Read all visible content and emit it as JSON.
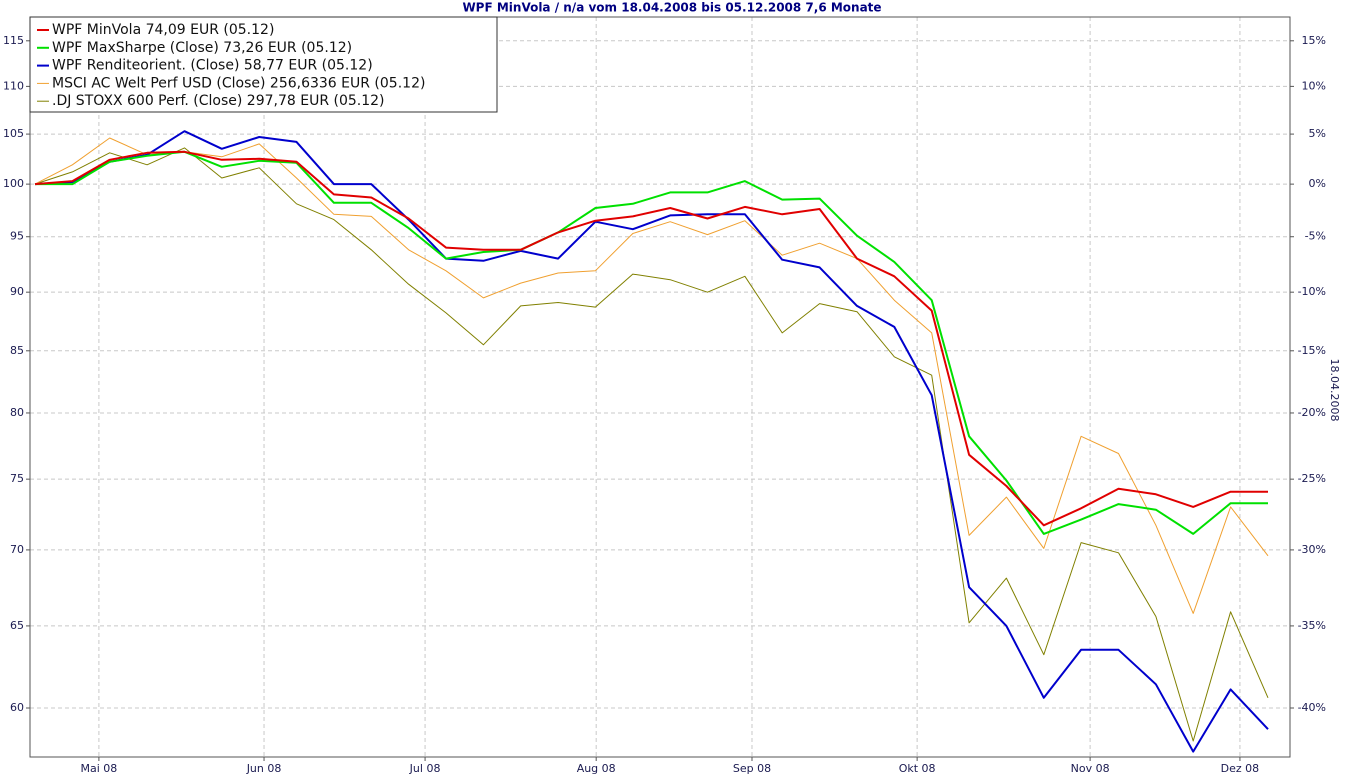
{
  "chart_data": {
    "type": "line",
    "title": "WPF MinVola / n/a vom 18.04.2008 bis 05.12.2008 7,6 Monate",
    "y2_label": "18.04.2008",
    "x": [
      0,
      1,
      2,
      3,
      4,
      5,
      6,
      7,
      8,
      9,
      10,
      11,
      12,
      13,
      14,
      15,
      16,
      17,
      18,
      19,
      20,
      21,
      22,
      23,
      24,
      25,
      26,
      27,
      28,
      29,
      30,
      31,
      32,
      33
    ],
    "xlim": [
      -0.134,
      33.59
    ],
    "xticks": [
      {
        "value": 1.71,
        "label": "Mai 08"
      },
      {
        "value": 6.13,
        "label": "Jun 08"
      },
      {
        "value": 10.44,
        "label": "Jul 08"
      },
      {
        "value": 15.02,
        "label": "Aug 08"
      },
      {
        "value": 19.19,
        "label": "Sep 08"
      },
      {
        "value": 23.61,
        "label": "Okt 08"
      },
      {
        "value": 28.24,
        "label": "Nov 08"
      },
      {
        "value": 32.25,
        "label": "Dez 08"
      }
    ],
    "ylim": [
      57.2,
      117.7
    ],
    "log_scale": true,
    "yticks": [
      60,
      65,
      70,
      75,
      80,
      85,
      90,
      95,
      100,
      105,
      110,
      115
    ],
    "y2lim": [
      -42.8,
      17.7
    ],
    "y2ticks": [
      {
        "value": -40,
        "label": "-40%"
      },
      {
        "value": -35,
        "label": "-35%"
      },
      {
        "value": -30,
        "label": "-30%"
      },
      {
        "value": -25,
        "label": "-25%"
      },
      {
        "value": -20,
        "label": "-20%"
      },
      {
        "value": -15,
        "label": "-15%"
      },
      {
        "value": -10,
        "label": "-10%"
      },
      {
        "value": -5,
        "label": "-5%"
      },
      {
        "value": 0,
        "label": "0%"
      },
      {
        "value": 5,
        "label": "5%"
      },
      {
        "value": 10,
        "label": "10%"
      },
      {
        "value": 15,
        "label": "15%"
      }
    ],
    "grid": true,
    "legend": "top-left",
    "series": [
      {
        "name": "WPF MinVola 74,09 EUR (05.12)",
        "color": "#e00000",
        "line_width": 2,
        "values": [
          100,
          100.3,
          102.4,
          103.1,
          103.2,
          102.4,
          102.5,
          102.2,
          99.0,
          98.7,
          96.7,
          94.0,
          93.8,
          93.8,
          95.4,
          96.5,
          96.9,
          97.7,
          96.7,
          97.8,
          97.1,
          97.6,
          93.0,
          91.4,
          88.4,
          76.8,
          74.5,
          71.7,
          72.9,
          74.3,
          73.9,
          73.0,
          74.09,
          74.09
        ]
      },
      {
        "name": "WPF MaxSharpe (Close) 73,26 EUR (05.12)",
        "color": "#00e000",
        "line_width": 2,
        "values": [
          100,
          100,
          102.2,
          102.8,
          103.2,
          101.7,
          102.3,
          102.1,
          98.2,
          98.2,
          95.8,
          93.0,
          93.6,
          93.8,
          95.4,
          97.7,
          98.1,
          99.2,
          99.2,
          100.3,
          98.5,
          98.6,
          95.1,
          92.7,
          89.3,
          78.2,
          74.9,
          71.1,
          72.1,
          73.2,
          72.8,
          71.1,
          73.26,
          73.26
        ]
      },
      {
        "name": "WPF Renditeorient. (Close) 58,77 EUR (05.12)",
        "color": "#0000cc",
        "line_width": 2,
        "values": [
          100,
          100.2,
          102.2,
          102.9,
          105.3,
          103.5,
          104.7,
          104.2,
          100,
          100,
          96.6,
          93.0,
          92.8,
          93.7,
          93.0,
          96.4,
          95.7,
          97.0,
          97.1,
          97.1,
          92.9,
          92.2,
          88.8,
          87.0,
          81.4,
          67.5,
          65.0,
          60.6,
          63.5,
          63.5,
          61.4,
          57.5,
          61.1,
          58.77
        ]
      },
      {
        "name": "MSCI AC Welt Perf USD (Close) 256,6336 EUR (05.12)",
        "color": "#f0a030",
        "line_width": 1,
        "values": [
          100,
          101.9,
          104.6,
          102.9,
          103.2,
          102.7,
          104.0,
          100.6,
          97.1,
          96.9,
          93.8,
          91.9,
          89.5,
          90.8,
          91.7,
          91.9,
          95.3,
          96.4,
          95.2,
          96.5,
          93.3,
          94.4,
          93.0,
          89.3,
          86.5,
          71.0,
          73.7,
          70.1,
          78.2,
          76.9,
          71.7,
          65.8,
          73.0,
          69.6
        ]
      },
      {
        "name": ".DJ STOXX 600 Perf. (Close) 297,78 EUR (05.12)",
        "color": "#808000",
        "line_width": 1,
        "values": [
          100,
          101.2,
          103.1,
          101.9,
          103.6,
          100.6,
          101.6,
          98.1,
          96.6,
          93.8,
          90.7,
          88.2,
          85.5,
          88.8,
          89.1,
          88.7,
          91.6,
          91.1,
          90.0,
          91.4,
          86.5,
          89.0,
          88.3,
          84.5,
          83.0,
          65.2,
          68.1,
          63.2,
          70.5,
          69.8,
          65.6,
          58.1,
          65.9,
          60.6
        ]
      }
    ]
  }
}
